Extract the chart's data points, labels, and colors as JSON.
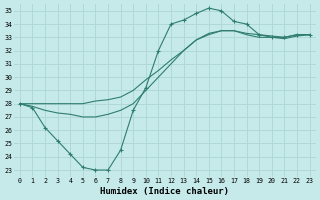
{
  "xlabel": "Humidex (Indice chaleur)",
  "background_color": "#c6eaea",
  "grid_color": "#b0d8d8",
  "line_color": "#2e7d6e",
  "xlim": [
    -0.5,
    23.5
  ],
  "ylim": [
    22.5,
    35.5
  ],
  "xticks": [
    0,
    1,
    2,
    3,
    4,
    5,
    6,
    7,
    8,
    9,
    10,
    11,
    12,
    13,
    14,
    15,
    16,
    17,
    18,
    19,
    20,
    21,
    22,
    23
  ],
  "yticks": [
    23,
    24,
    25,
    26,
    27,
    28,
    29,
    30,
    31,
    32,
    33,
    34,
    35
  ],
  "s1_y": [
    28.0,
    27.7,
    26.2,
    25.2,
    24.2,
    23.2,
    23.0,
    23.0,
    24.5,
    27.5,
    29.2,
    32.0,
    34.0,
    34.3,
    34.8,
    35.2,
    35.0,
    34.2,
    34.0,
    33.2,
    33.0,
    33.0,
    33.2,
    33.2
  ],
  "s2_y": [
    28.0,
    28.0,
    28.0,
    28.0,
    28.0,
    28.0,
    28.2,
    28.3,
    28.5,
    29.0,
    29.8,
    30.5,
    31.3,
    32.0,
    32.8,
    33.3,
    33.5,
    33.5,
    33.3,
    33.2,
    33.1,
    33.0,
    33.2,
    33.2
  ],
  "s3_y": [
    28.0,
    27.8,
    27.5,
    27.3,
    27.2,
    27.0,
    27.0,
    27.2,
    27.5,
    28.0,
    29.0,
    30.0,
    31.0,
    32.0,
    32.8,
    33.2,
    33.5,
    33.5,
    33.2,
    33.0,
    33.0,
    32.9,
    33.1,
    33.2
  ]
}
